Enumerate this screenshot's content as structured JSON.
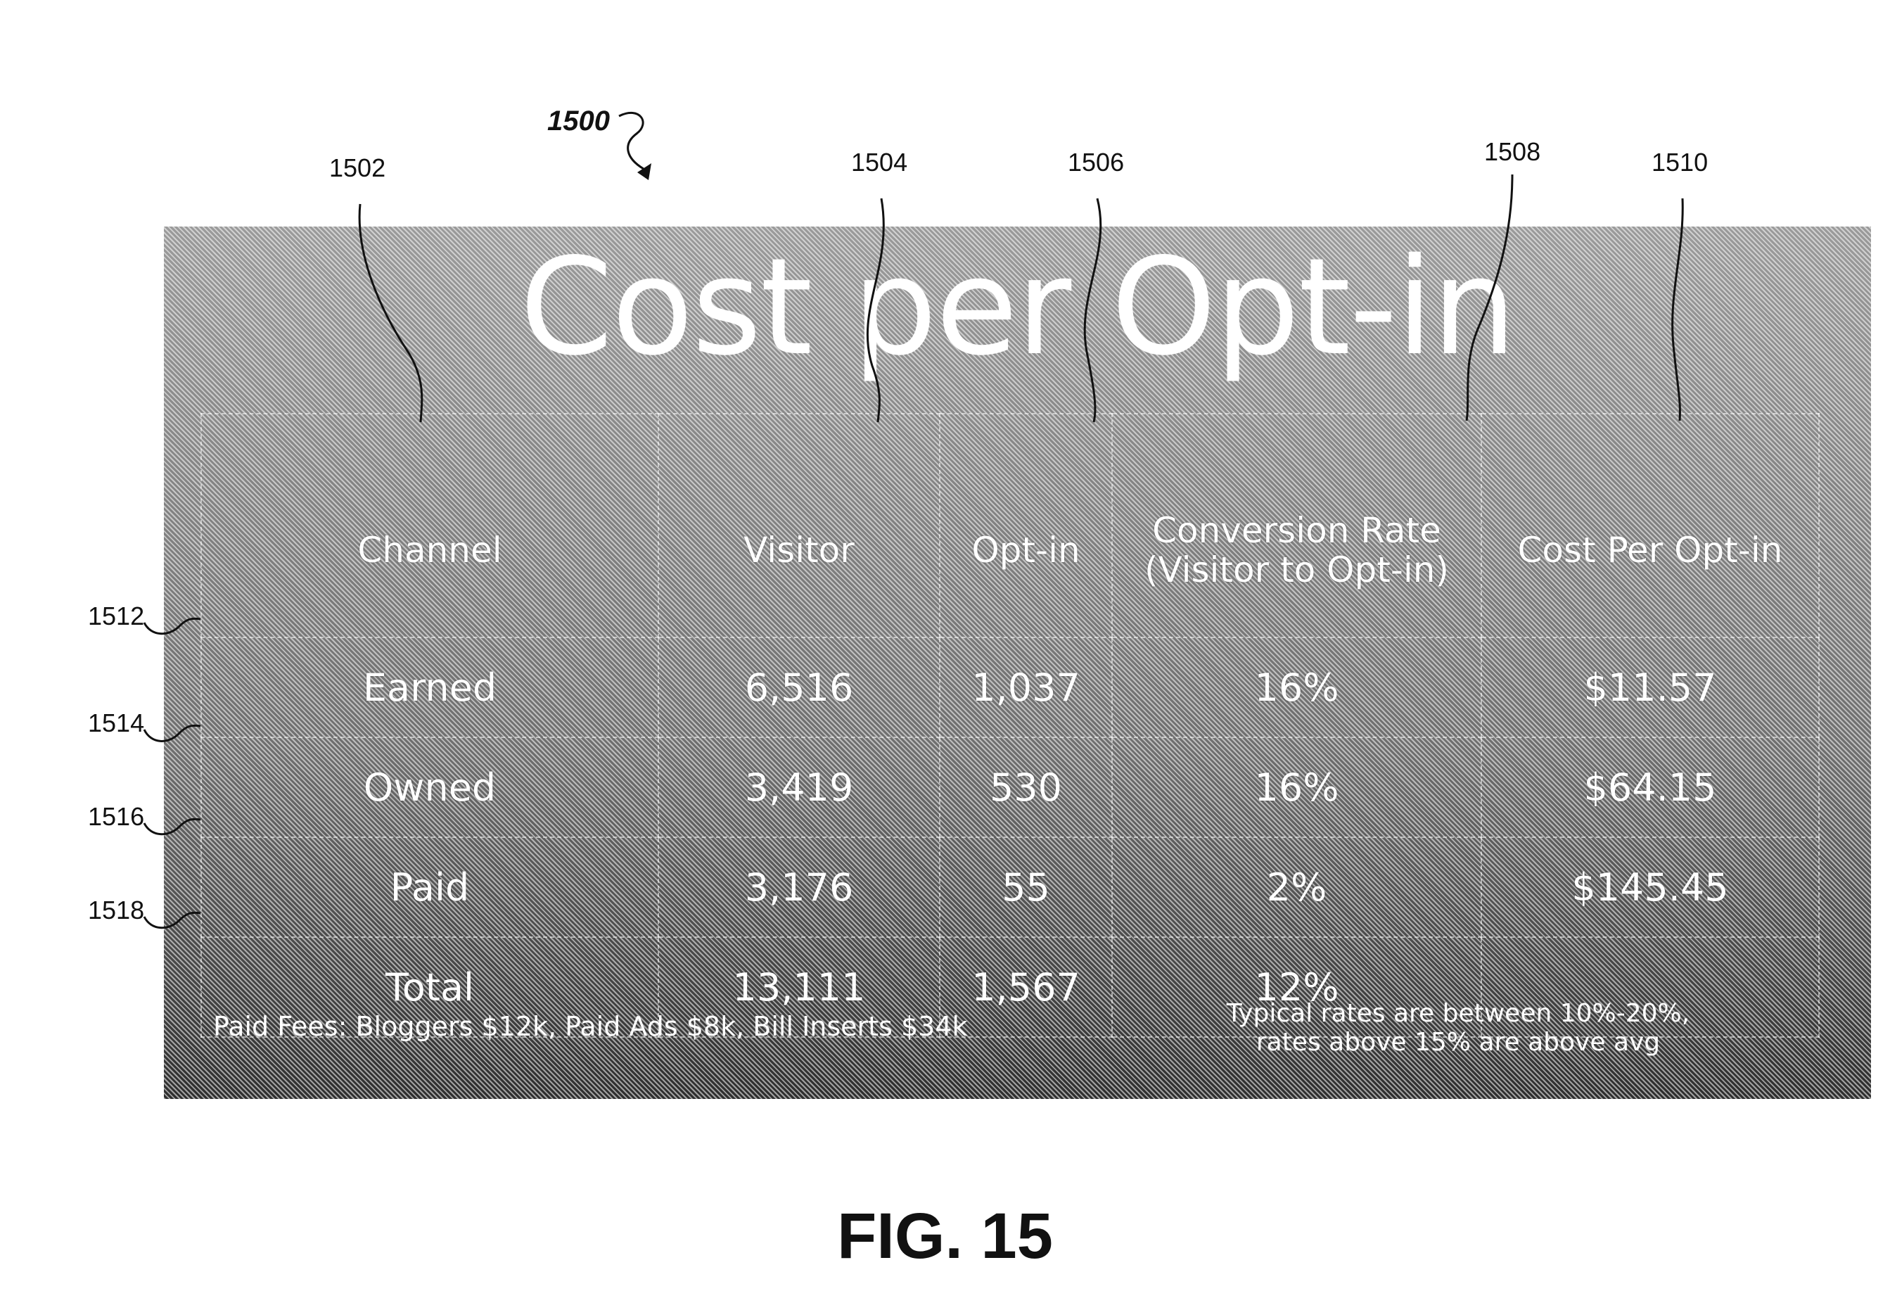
{
  "figure": {
    "ref": "1500",
    "caption": "FIG. 15"
  },
  "refs": {
    "col_channel": "1502",
    "col_visitor": "1504",
    "col_optin": "1506",
    "col_conversion": "1508",
    "col_cost": "1510",
    "row_earned": "1512",
    "row_owned": "1514",
    "row_paid": "1516",
    "row_total": "1518"
  },
  "slide": {
    "title": "Cost per Opt-in",
    "headers": {
      "channel": "Channel",
      "visitor": "Visitor",
      "optin": "Opt-in",
      "conversion_line1": "Conversion Rate",
      "conversion_line2": "(Visitor to Opt-in)",
      "cost": "Cost Per Opt-in"
    },
    "rows": [
      {
        "channel": "Earned",
        "visitor": "6,516",
        "optin": "1,037",
        "conversion": "16%",
        "cost": "$11.57"
      },
      {
        "channel": "Owned",
        "visitor": "3,419",
        "optin": "530",
        "conversion": "16%",
        "cost": "$64.15"
      },
      {
        "channel": "Paid",
        "visitor": "3,176",
        "optin": "55",
        "conversion": "2%",
        "cost": "$145.45"
      },
      {
        "channel": "Total",
        "visitor": "13,111",
        "optin": "1,567",
        "conversion": "12%",
        "cost": ""
      }
    ],
    "note_left": "Paid Fees: Bloggers $12k, Paid Ads $8k, Bill Inserts $34k",
    "note_right_line1": "Typical rates are between 10%-20%,",
    "note_right_line2": "rates above 15% are above avg"
  }
}
